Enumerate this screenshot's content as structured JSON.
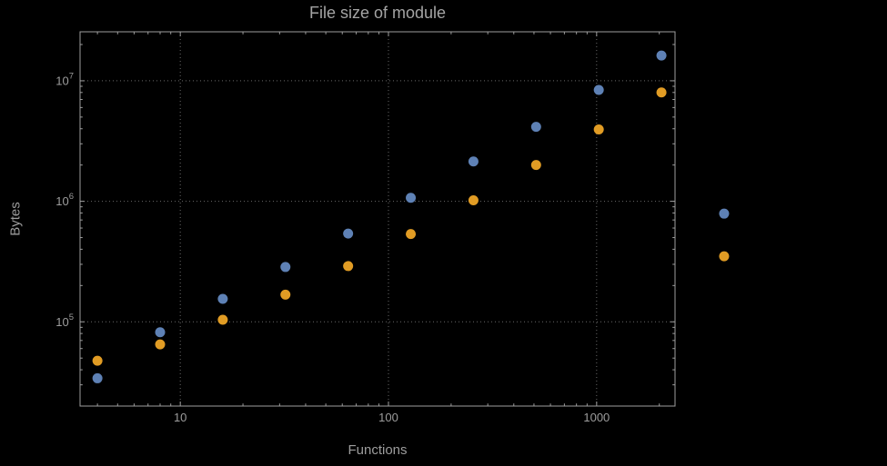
{
  "window": {
    "background": "#000000"
  },
  "chart_data": {
    "type": "scatter",
    "title": "File size of module",
    "xlabel": "Functions",
    "ylabel": "Bytes",
    "x_scale": "log",
    "y_scale": "log",
    "xlim": [
      3.3,
      2380
    ],
    "ylim": [
      20000,
      25500000
    ],
    "x_ticks": [
      10,
      100,
      1000
    ],
    "y_ticks": [
      100000,
      1000000,
      10000000
    ],
    "grid": "dotted-at-major-ticks",
    "legend_position": "none",
    "plot_range_clipping": false,
    "x": [
      4,
      8,
      16,
      32,
      64,
      128,
      256,
      512,
      1024,
      2048,
      4096
    ],
    "series": [
      {
        "name": "series-blue",
        "color": "#5e81b5",
        "values": [
          34000,
          82000,
          155000,
          285000,
          540000,
          1070000,
          2140000,
          4150000,
          8400000,
          16200000,
          790000
        ]
      },
      {
        "name": "series-orange",
        "color": "#e19c24",
        "values": [
          47500,
          65000,
          104000,
          168000,
          290000,
          535000,
          1020000,
          2000000,
          3950000,
          8000000,
          350000
        ]
      }
    ],
    "colors": {
      "frame": "#9e9e9e",
      "grid": "#6a6a6a",
      "text": "#9d9d9d",
      "title": "#a4a4a4",
      "background": "#000000"
    },
    "marker_radius": 5.5
  }
}
